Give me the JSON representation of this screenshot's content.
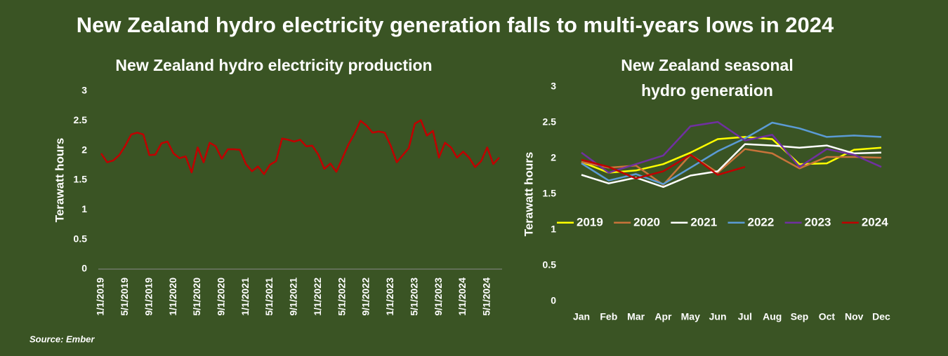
{
  "title": "New Zealand hydro electricity generation falls to multi-years lows in 2024",
  "source": "Source: Ember",
  "chart_data": [
    {
      "type": "line",
      "title": "New Zealand hydro electricity production",
      "y_label": "Terawatt hours",
      "color": "#c00000",
      "categories": [
        "1/1/2019",
        null,
        null,
        null,
        "5/1/2019",
        null,
        null,
        null,
        "9/1/2019",
        null,
        null,
        null,
        "1/1/2020",
        null,
        null,
        null,
        "5/1/2020",
        null,
        null,
        null,
        "9/1/2020",
        null,
        null,
        null,
        "1/1/2021",
        null,
        null,
        null,
        "5/1/2021",
        null,
        null,
        null,
        "9/1/2021",
        null,
        null,
        null,
        "1/1/2022",
        null,
        null,
        null,
        "5/1/2022",
        null,
        null,
        null,
        "9/1/2022",
        null,
        null,
        null,
        "1/1/2023",
        null,
        null,
        null,
        "5/1/2023",
        null,
        null,
        null,
        "9/1/2023",
        null,
        null,
        null,
        "1/1/2024",
        null,
        null,
        null,
        "5/1/2024",
        null,
        null
      ],
      "values": [
        1.95,
        1.8,
        1.83,
        1.92,
        2.08,
        2.27,
        2.3,
        2.27,
        1.92,
        1.93,
        2.12,
        2.15,
        1.95,
        1.87,
        1.9,
        1.63,
        2.05,
        1.8,
        2.13,
        2.07,
        1.86,
        2.02,
        2.02,
        2.01,
        1.77,
        1.65,
        1.73,
        1.6,
        1.76,
        1.82,
        2.2,
        2.18,
        2.15,
        2.18,
        2.07,
        2.08,
        1.93,
        1.69,
        1.78,
        1.64,
        1.87,
        2.1,
        2.28,
        2.5,
        2.42,
        2.3,
        2.32,
        2.3,
        2.08,
        1.8,
        1.92,
        2.04,
        2.45,
        2.51,
        2.25,
        2.33,
        1.88,
        2.13,
        2.05,
        1.88,
        1.98,
        1.88,
        1.72,
        1.82,
        2.05,
        1.77,
        1.88
      ],
      "ylim": [
        0,
        3
      ],
      "yticks": [
        0,
        0.5,
        1,
        1.5,
        2,
        2.5,
        3
      ],
      "grid": false
    },
    {
      "type": "line",
      "title": [
        "New Zealand seasonal",
        "hydro generation"
      ],
      "y_label": "Terawatt hours",
      "categories": [
        "Jan",
        "Feb",
        "Mar",
        "Apr",
        "May",
        "Jun",
        "Jul",
        "Aug",
        "Sep",
        "Oct",
        "Nov",
        "Dec"
      ],
      "series": [
        {
          "name": "2019",
          "color": "#ffff00",
          "values": [
            1.95,
            1.8,
            1.83,
            1.92,
            2.08,
            2.27,
            2.3,
            2.27,
            1.92,
            1.93,
            2.12,
            2.15
          ]
        },
        {
          "name": "2020",
          "color": "#c8733a",
          "values": [
            1.95,
            1.87,
            1.9,
            1.63,
            2.05,
            1.8,
            2.13,
            2.07,
            1.86,
            2.02,
            2.02,
            2.01
          ]
        },
        {
          "name": "2021",
          "color": "#ffffff",
          "values": [
            1.77,
            1.65,
            1.73,
            1.6,
            1.76,
            1.82,
            2.2,
            2.18,
            2.15,
            2.18,
            2.07,
            2.08
          ]
        },
        {
          "name": "2022",
          "color": "#5b9bd5",
          "values": [
            1.93,
            1.69,
            1.78,
            1.64,
            1.87,
            2.1,
            2.28,
            2.5,
            2.42,
            2.3,
            2.32,
            2.3
          ]
        },
        {
          "name": "2023",
          "color": "#7030a0",
          "values": [
            2.08,
            1.8,
            1.92,
            2.04,
            2.45,
            2.51,
            2.25,
            2.33,
            1.88,
            2.13,
            2.05,
            1.88
          ]
        },
        {
          "name": "2024",
          "color": "#c00000",
          "values": [
            1.98,
            1.88,
            1.72,
            1.82,
            2.05,
            1.77,
            1.88,
            null,
            null,
            null,
            null,
            null
          ]
        }
      ],
      "ylim": [
        0,
        3
      ],
      "yticks": [
        0,
        0.5,
        1,
        1.5,
        2,
        2.5,
        3
      ],
      "grid": false,
      "legend": "center"
    }
  ]
}
